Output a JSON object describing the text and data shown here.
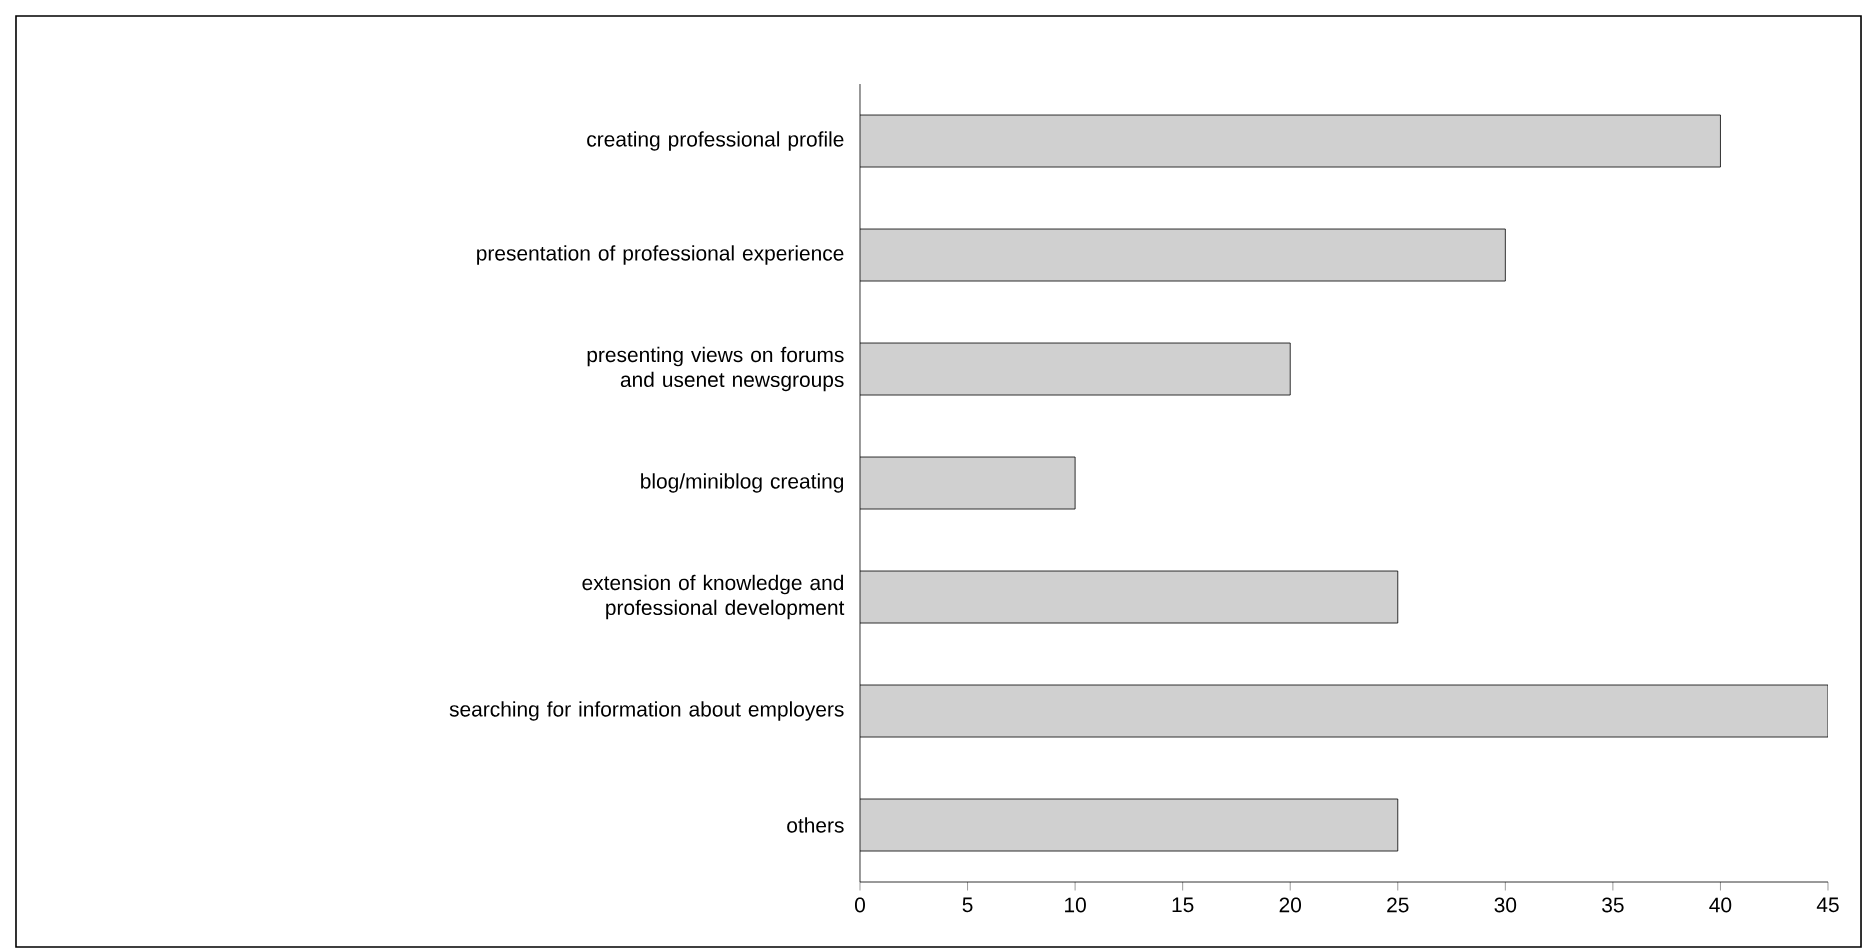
{
  "chart_data": {
    "type": "bar",
    "orientation": "horizontal",
    "categories": [
      "creating professional profile",
      "presentation of professional experience",
      "presenting views on forums and usenet newsgroups",
      "blog/miniblog creating",
      "extension of knowledge and professional development",
      "searching for information about employers",
      "others"
    ],
    "values": [
      40,
      30,
      20,
      10,
      25,
      45,
      25
    ],
    "color": "#d0d0d0",
    "xlim": [
      0,
      45
    ],
    "xticks": [
      0,
      5,
      10,
      15,
      20,
      25,
      30,
      35,
      40,
      45
    ],
    "grid": false
  }
}
